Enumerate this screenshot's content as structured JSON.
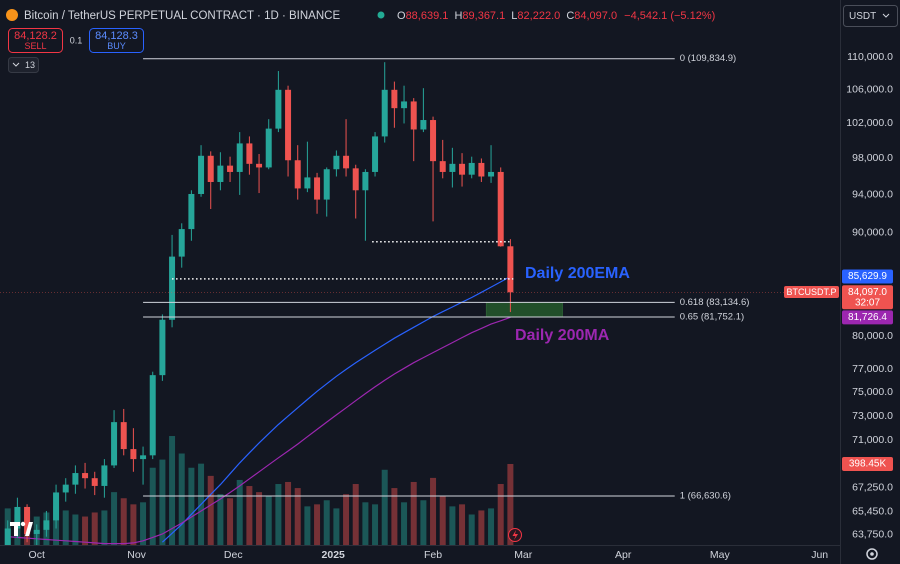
{
  "header": {
    "symbol": "Bitcoin / TetherUS PERPETUAL CONTRACT · 1D · BINANCE",
    "open_label": "O",
    "open": "88,639.1",
    "high_label": "H",
    "high": "89,367.1",
    "low_label": "L",
    "low": "82,222.0",
    "close_label": "C",
    "close": "84,097.0",
    "change": "−4,542.1 (−5.12%)",
    "sell_price": "84,128.2",
    "sell": "SELL",
    "spread": "0.1",
    "buy_price": "84,128.3",
    "buy": "BUY",
    "indicators": "13",
    "currency": "USDT"
  },
  "chart_data": {
    "type": "candlestick",
    "up_color": "#26a69a",
    "down_color": "#ef5350",
    "log_scale": true,
    "grid": false,
    "xlim": [
      -0.8,
      86.1
    ],
    "xticks": [
      {
        "value": 3,
        "label": "Oct"
      },
      {
        "value": 13.33,
        "label": "Nov"
      },
      {
        "value": 23.33,
        "label": "Dec"
      },
      {
        "value": 33.67,
        "label": "2025"
      },
      {
        "value": 44,
        "label": "Feb"
      },
      {
        "value": 53.33,
        "label": "Mar"
      },
      {
        "value": 63.67,
        "label": "Apr"
      },
      {
        "value": 73.67,
        "label": "May"
      },
      {
        "value": 84,
        "label": "Jun"
      }
    ],
    "ylim": [
      63000,
      113500
    ],
    "yticks": [
      {
        "value": 110000,
        "label": "110,000.0"
      },
      {
        "value": 106000,
        "label": "106,000.0"
      },
      {
        "value": 102000,
        "label": "102,000.0"
      },
      {
        "value": 98000,
        "label": "98,000.0"
      },
      {
        "value": 94000,
        "label": "94,000.0"
      },
      {
        "value": 90000,
        "label": "90,000.0"
      },
      {
        "value": 80000,
        "label": "80,000.0"
      },
      {
        "value": 77000,
        "label": "77,000.0"
      },
      {
        "value": 75000,
        "label": "75,000.0"
      },
      {
        "value": 73000,
        "label": "73,000.0"
      },
      {
        "value": 71000,
        "label": "71,000.0"
      },
      {
        "value": 67250,
        "label": "67,250.0"
      },
      {
        "value": 65450,
        "label": "65,450.0"
      },
      {
        "value": 63750,
        "label": "63,750.0"
      }
    ],
    "open": [
      63000,
      64200,
      65800,
      63800,
      64100,
      64800,
      66900,
      67500,
      68400,
      68000,
      67400,
      69000,
      72500,
      70300,
      69500,
      69800,
      76500,
      81500,
      87600,
      90400,
      94100,
      98300,
      95400,
      97200,
      96500,
      99700,
      97400,
      97000,
      101400,
      106000,
      97800,
      94700,
      95900,
      93500,
      96800,
      98300,
      96900,
      94500,
      96500,
      100500,
      106000,
      103800,
      104600,
      101300,
      102400,
      97700,
      96500,
      97400,
      96200,
      97500,
      96000,
      96500,
      88639.1
    ],
    "high": [
      64800,
      66500,
      66000,
      64500,
      65500,
      67500,
      68000,
      69000,
      69200,
      68500,
      69500,
      73500,
      73600,
      72000,
      70500,
      76800,
      82000,
      89800,
      91000,
      94500,
      99500,
      98800,
      98700,
      98200,
      101000,
      100500,
      98500,
      102500,
      108300,
      106500,
      99500,
      99900,
      96400,
      97000,
      98900,
      102500,
      97300,
      96800,
      101000,
      109400,
      107000,
      106500,
      105000,
      106200,
      102800,
      100100,
      99200,
      98600,
      98200,
      98000,
      99500,
      97000,
      89367.1
    ],
    "low": [
      62500,
      63500,
      63200,
      62800,
      63600,
      64200,
      66200,
      66800,
      67200,
      66700,
      66500,
      68800,
      69800,
      68500,
      67500,
      69500,
      76000,
      80800,
      86500,
      89200,
      93800,
      92500,
      94500,
      95400,
      94000,
      96200,
      94200,
      96800,
      101000,
      96000,
      93500,
      94300,
      92000,
      91700,
      96000,
      96000,
      91500,
      89200,
      96000,
      99800,
      101500,
      102000,
      97700,
      101000,
      91200,
      95800,
      94800,
      94900,
      95800,
      95400,
      95300,
      88600,
      82222
    ],
    "close": [
      64200,
      65800,
      63800,
      64100,
      64800,
      66900,
      67500,
      68400,
      68000,
      67400,
      69000,
      72500,
      70300,
      69500,
      69800,
      76500,
      81500,
      87600,
      90400,
      94100,
      98300,
      95400,
      97200,
      96500,
      99700,
      97400,
      97000,
      101400,
      106000,
      97800,
      94700,
      95900,
      93500,
      96800,
      98300,
      96900,
      94500,
      96500,
      100500,
      106000,
      103800,
      104600,
      101300,
      102400,
      97700,
      96500,
      97400,
      96200,
      97500,
      96000,
      96500,
      88639.1,
      84097
    ],
    "volume": [
      180000,
      150000,
      170000,
      140000,
      160000,
      190000,
      170000,
      150000,
      140000,
      160000,
      170000,
      260000,
      230000,
      200000,
      210000,
      380000,
      420000,
      536000,
      450000,
      380000,
      400000,
      340000,
      250000,
      230000,
      320000,
      290000,
      260000,
      240000,
      300000,
      310000,
      280000,
      190000,
      200000,
      220000,
      180000,
      250000,
      300000,
      210000,
      200000,
      370000,
      280000,
      210000,
      310000,
      220000,
      330000,
      240000,
      190000,
      200000,
      150000,
      170000,
      180000,
      300000,
      398450
    ],
    "volume_lim": [
      0,
      2533000
    ],
    "volume_label": "398.45K",
    "series": [
      {
        "name": "Daily 200EMA",
        "color": "#2962ff",
        "values": [
          null,
          null,
          null,
          null,
          null,
          null,
          null,
          null,
          null,
          null,
          null,
          null,
          null,
          null,
          null,
          null,
          63200,
          63850,
          64500,
          65250,
          66000,
          66750,
          67500,
          68350,
          69200,
          70000,
          70800,
          71550,
          72300,
          73000,
          73700,
          74400,
          75100,
          75750,
          76400,
          77000,
          77600,
          78150,
          78700,
          79250,
          79800,
          80300,
          80800,
          81300,
          81800,
          82250,
          82700,
          83150,
          83600,
          84100,
          84600,
          85100,
          85629.9
        ]
      },
      {
        "name": "Daily 200MA",
        "color": "#9c27b0",
        "values": [
          63600,
          63550,
          63500,
          63450,
          63400,
          63350,
          63300,
          63250,
          63200,
          63150,
          63100,
          63100,
          63100,
          63150,
          63300,
          63550,
          63800,
          64200,
          64600,
          65050,
          65500,
          65950,
          66400,
          66900,
          67400,
          67950,
          68500,
          69050,
          69600,
          70150,
          70700,
          71300,
          71900,
          72500,
          73100,
          73700,
          74300,
          74900,
          75500,
          76050,
          76600,
          77100,
          77600,
          78050,
          78500,
          78950,
          79400,
          79850,
          80300,
          80700,
          81100,
          81400,
          81726.4
        ]
      }
    ],
    "fib_range": [
      14,
      69
    ],
    "fib_levels": [
      {
        "value": 109834.9,
        "label": "0 (109,834.9)"
      },
      {
        "value": 83134.6,
        "label": "0.618 (83,134.6)"
      },
      {
        "value": 81752.1,
        "label": "0.65 (81,752.1)"
      },
      {
        "value": 66630.6,
        "label": "1 (66,630.6)"
      }
    ],
    "dotted_levels": [
      {
        "value": 89100,
        "from": 37.7,
        "to": 51.9
      },
      {
        "value": 85400,
        "from": 17.0,
        "to": 52.3
      }
    ],
    "zone": {
      "from": 49.5,
      "to": 57.4,
      "color": "#2e7d32"
    },
    "symbol_tag": "BTCUSDT.P",
    "countdown": "32:07",
    "price_labels": [
      {
        "value": 85629.9,
        "label": "85,629.9",
        "color": "#2962ff"
      },
      {
        "value": 84097.0,
        "label": "84,097.0",
        "color": "#ef5350"
      },
      {
        "value": 81726.4,
        "label": "81,726.4",
        "color": "#9c27b0"
      }
    ]
  }
}
